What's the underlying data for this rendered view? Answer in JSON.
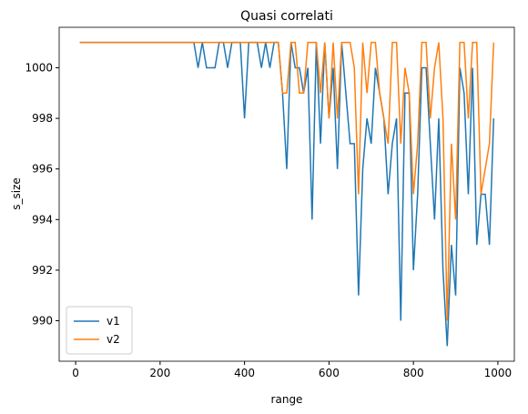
{
  "chart_data": {
    "type": "line",
    "title": "Quasi correlati",
    "xlabel": "range",
    "ylabel": "s_size",
    "x": [
      10,
      20,
      30,
      40,
      50,
      60,
      70,
      80,
      90,
      100,
      110,
      120,
      130,
      140,
      150,
      160,
      170,
      180,
      190,
      200,
      210,
      220,
      230,
      240,
      250,
      260,
      270,
      280,
      290,
      300,
      310,
      320,
      330,
      340,
      350,
      360,
      370,
      380,
      390,
      400,
      410,
      420,
      430,
      440,
      450,
      460,
      470,
      480,
      490,
      500,
      510,
      520,
      530,
      540,
      550,
      560,
      570,
      580,
      590,
      600,
      610,
      620,
      630,
      640,
      650,
      660,
      670,
      680,
      690,
      700,
      710,
      720,
      730,
      740,
      750,
      760,
      770,
      780,
      790,
      800,
      810,
      820,
      830,
      840,
      850,
      860,
      870,
      880,
      890,
      900,
      910,
      920,
      930,
      940,
      950,
      960,
      970,
      980,
      990
    ],
    "series": [
      {
        "name": "v1",
        "color": "#1f77b4",
        "values": [
          1001,
          1001,
          1001,
          1001,
          1001,
          1001,
          1001,
          1001,
          1001,
          1001,
          1001,
          1001,
          1001,
          1001,
          1001,
          1001,
          1001,
          1001,
          1001,
          1001,
          1001,
          1001,
          1001,
          1001,
          1001,
          1001,
          1001,
          1001,
          1000,
          1001,
          1000,
          1000,
          1000,
          1001,
          1001,
          1000,
          1001,
          1001,
          1001,
          998,
          1001,
          1001,
          1001,
          1000,
          1001,
          1000,
          1001,
          1001,
          999,
          996,
          1001,
          1000,
          1000,
          999,
          1000,
          994,
          1001,
          997,
          1001,
          998,
          1000,
          996,
          1001,
          999,
          997,
          997,
          991,
          996,
          998,
          997,
          1000,
          999,
          998,
          995,
          997,
          998,
          990,
          999,
          999,
          992,
          995,
          1000,
          1000,
          997,
          994,
          998,
          992,
          989,
          993,
          991,
          1000,
          999,
          995,
          1000,
          993,
          995,
          995,
          993,
          998
        ]
      },
      {
        "name": "v2",
        "color": "#ff7f0e",
        "values": [
          1001,
          1001,
          1001,
          1001,
          1001,
          1001,
          1001,
          1001,
          1001,
          1001,
          1001,
          1001,
          1001,
          1001,
          1001,
          1001,
          1001,
          1001,
          1001,
          1001,
          1001,
          1001,
          1001,
          1001,
          1001,
          1001,
          1001,
          1001,
          1001,
          1001,
          1001,
          1001,
          1001,
          1001,
          1001,
          1001,
          1001,
          1001,
          1001,
          1001,
          1001,
          1001,
          1001,
          1001,
          1001,
          1001,
          1001,
          1001,
          999,
          999,
          1001,
          1001,
          999,
          999,
          1001,
          1001,
          1001,
          999,
          1001,
          998,
          1001,
          998,
          1001,
          1001,
          1001,
          1000,
          995,
          1001,
          999,
          1001,
          1001,
          999,
          998,
          997,
          1001,
          1001,
          997,
          1000,
          999,
          995,
          997,
          1001,
          1001,
          998,
          1000,
          1001,
          998,
          990,
          997,
          994,
          1001,
          1001,
          998,
          1001,
          1001,
          995,
          996,
          997,
          1001
        ]
      }
    ],
    "xlim": [
      -39,
      1039
    ],
    "ylim": [
      988.4,
      1001.6
    ],
    "xticks": [
      0,
      200,
      400,
      600,
      800,
      1000
    ],
    "yticks": [
      990,
      992,
      994,
      996,
      998,
      1000
    ],
    "legend": "lower left"
  }
}
